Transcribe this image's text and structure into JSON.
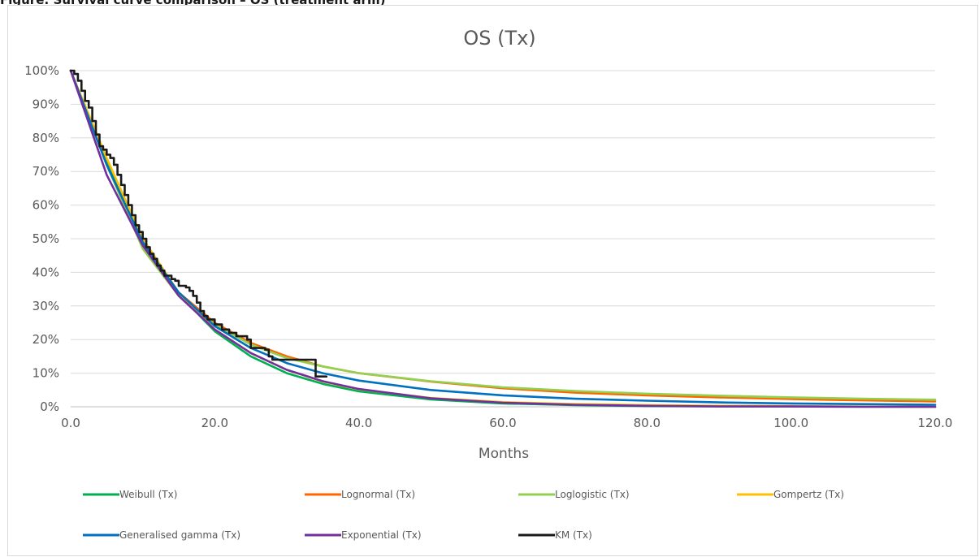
{
  "caption": "Figure: Survival curve comparison – OS (treatment arm)",
  "chart_data": {
    "type": "line",
    "title": "OS (Tx)",
    "xlabel": "Months",
    "ylabel": "",
    "xlim": [
      0,
      120
    ],
    "ylim": [
      0,
      1
    ],
    "x_ticks": [
      0,
      20,
      40,
      60,
      80,
      100,
      120
    ],
    "x_tick_labels": [
      "0.0",
      "20.0",
      "40.0",
      "60.0",
      "80.0",
      "100.0",
      "120.0"
    ],
    "y_ticks": [
      0,
      0.1,
      0.2,
      0.3,
      0.4,
      0.5,
      0.6,
      0.7,
      0.8,
      0.9,
      1.0
    ],
    "y_tick_labels": [
      "0%",
      "10%",
      "20%",
      "30%",
      "40%",
      "50%",
      "60%",
      "70%",
      "80%",
      "90%",
      "100%"
    ],
    "grid": "horizontal",
    "legend_position": "bottom",
    "series": [
      {
        "name": "Weibull (Tx)",
        "color": "#00b050",
        "x": [
          0,
          5,
          10,
          15,
          20,
          25,
          30,
          35,
          40,
          50,
          60,
          70,
          80,
          100,
          120
        ],
        "y": [
          1.0,
          0.73,
          0.5,
          0.335,
          0.225,
          0.15,
          0.1,
          0.068,
          0.046,
          0.022,
          0.01,
          0.005,
          0.002,
          0.001,
          0.0
        ]
      },
      {
        "name": "Lognormal (Tx)",
        "color": "#ff6600",
        "x": [
          0,
          5,
          10,
          15,
          20,
          25,
          30,
          35,
          40,
          50,
          60,
          70,
          80,
          90,
          100,
          110,
          120
        ],
        "y": [
          1.0,
          0.72,
          0.48,
          0.34,
          0.25,
          0.19,
          0.15,
          0.12,
          0.1,
          0.075,
          0.055,
          0.042,
          0.034,
          0.028,
          0.023,
          0.019,
          0.016
        ]
      },
      {
        "name": "Loglogistic (Tx)",
        "color": "#92d050",
        "x": [
          0,
          5,
          10,
          15,
          20,
          25,
          30,
          35,
          40,
          50,
          60,
          70,
          80,
          90,
          100,
          110,
          120
        ],
        "y": [
          1.0,
          0.72,
          0.47,
          0.33,
          0.245,
          0.185,
          0.145,
          0.12,
          0.1,
          0.076,
          0.058,
          0.047,
          0.039,
          0.033,
          0.028,
          0.024,
          0.021
        ]
      },
      {
        "name": "Gompertz (Tx)",
        "color": "#ffc000",
        "x": [
          0,
          5,
          10,
          15,
          20,
          25,
          30,
          35,
          40,
          50,
          60,
          70,
          80,
          90,
          100,
          120
        ],
        "y": [
          1.0,
          0.74,
          0.5,
          0.34,
          0.23,
          0.16,
          0.11,
          0.075,
          0.052,
          0.026,
          0.014,
          0.008,
          0.005,
          0.003,
          0.002,
          0.0
        ]
      },
      {
        "name": "Generalised gamma (Tx)",
        "color": "#0070c0",
        "x": [
          0,
          5,
          10,
          15,
          20,
          25,
          30,
          35,
          40,
          50,
          60,
          70,
          80,
          90,
          100,
          110,
          120
        ],
        "y": [
          1.0,
          0.72,
          0.49,
          0.34,
          0.24,
          0.175,
          0.13,
          0.1,
          0.078,
          0.05,
          0.034,
          0.024,
          0.018,
          0.013,
          0.01,
          0.008,
          0.006
        ]
      },
      {
        "name": "Exponential (Tx)",
        "color": "#7030a0",
        "x": [
          0,
          5,
          10,
          15,
          20,
          25,
          30,
          35,
          40,
          50,
          60,
          70,
          80,
          90,
          100,
          110,
          120
        ],
        "y": [
          1.0,
          0.69,
          0.48,
          0.33,
          0.23,
          0.16,
          0.11,
          0.076,
          0.053,
          0.025,
          0.012,
          0.006,
          0.003,
          0.001,
          0.001,
          0.0,
          0.0
        ]
      },
      {
        "name": "KM (Tx)",
        "color": "#1a1a1a",
        "step": true,
        "x": [
          0,
          0.5,
          1,
          1.5,
          2,
          2.5,
          3,
          3.5,
          4,
          4.5,
          5,
          5.5,
          6,
          6.5,
          7,
          7.5,
          8,
          8.5,
          9,
          9.5,
          10,
          10.5,
          11,
          11.5,
          12,
          12.5,
          13,
          14,
          14.5,
          15,
          16,
          16.5,
          17,
          17.5,
          18,
          18.5,
          19,
          20,
          21,
          22,
          23,
          24.5,
          25,
          27,
          27.5,
          28,
          33.5,
          34,
          35.5
        ],
        "y": [
          1.0,
          0.99,
          0.97,
          0.94,
          0.91,
          0.89,
          0.85,
          0.81,
          0.775,
          0.765,
          0.75,
          0.74,
          0.72,
          0.69,
          0.66,
          0.63,
          0.6,
          0.57,
          0.54,
          0.52,
          0.5,
          0.475,
          0.455,
          0.44,
          0.42,
          0.405,
          0.39,
          0.38,
          0.375,
          0.36,
          0.355,
          0.345,
          0.33,
          0.31,
          0.285,
          0.27,
          0.26,
          0.245,
          0.23,
          0.22,
          0.21,
          0.2,
          0.175,
          0.17,
          0.15,
          0.14,
          0.14,
          0.09,
          0.09
        ]
      }
    ]
  }
}
